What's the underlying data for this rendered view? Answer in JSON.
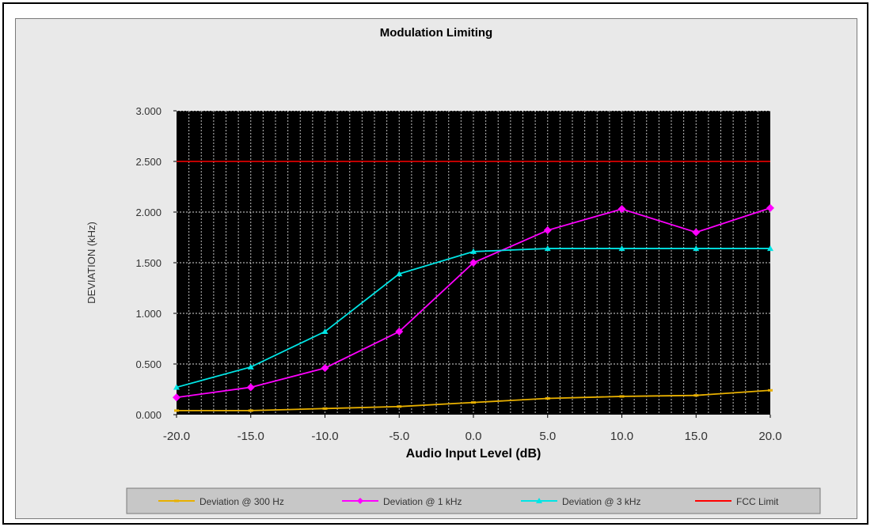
{
  "chart_data": {
    "type": "line",
    "title": "Modulation Limiting",
    "xlabel": "Audio Input Level (dB)",
    "ylabel": "DEVIATION (kHz)",
    "categories": [
      "-20.0",
      "-15.0",
      "-10.0",
      "-5.0",
      "0.0",
      "5.0",
      "10.0",
      "15.0",
      "20.0"
    ],
    "y_tick_labels": [
      "0.000",
      "0.500",
      "1.000",
      "1.500",
      "2.000",
      "2.500",
      "3.000"
    ],
    "ylim": [
      0,
      3
    ],
    "grid": true,
    "legend_position": "bottom",
    "series": [
      {
        "name": "Deviation @ 300 Hz",
        "color": "#e8b000",
        "marker": "dash",
        "values": [
          0.04,
          0.04,
          0.06,
          0.08,
          0.12,
          0.16,
          0.18,
          0.19,
          0.24
        ]
      },
      {
        "name": "Deviation @ 1 kHz",
        "color": "#ff00ff",
        "marker": "diamond",
        "values": [
          0.17,
          0.27,
          0.46,
          0.82,
          1.5,
          1.82,
          2.03,
          1.8,
          2.04
        ]
      },
      {
        "name": "Deviation @ 3 kHz",
        "color": "#00e5e5",
        "marker": "triangle",
        "values": [
          0.27,
          0.47,
          0.82,
          1.39,
          1.61,
          1.64,
          1.64,
          1.64,
          1.64
        ]
      },
      {
        "name": "FCC Limit",
        "color": "#ff0000",
        "marker": "none",
        "values": [
          2.5,
          2.5,
          2.5,
          2.5,
          2.5,
          2.5,
          2.5,
          2.5,
          2.5
        ]
      }
    ]
  }
}
